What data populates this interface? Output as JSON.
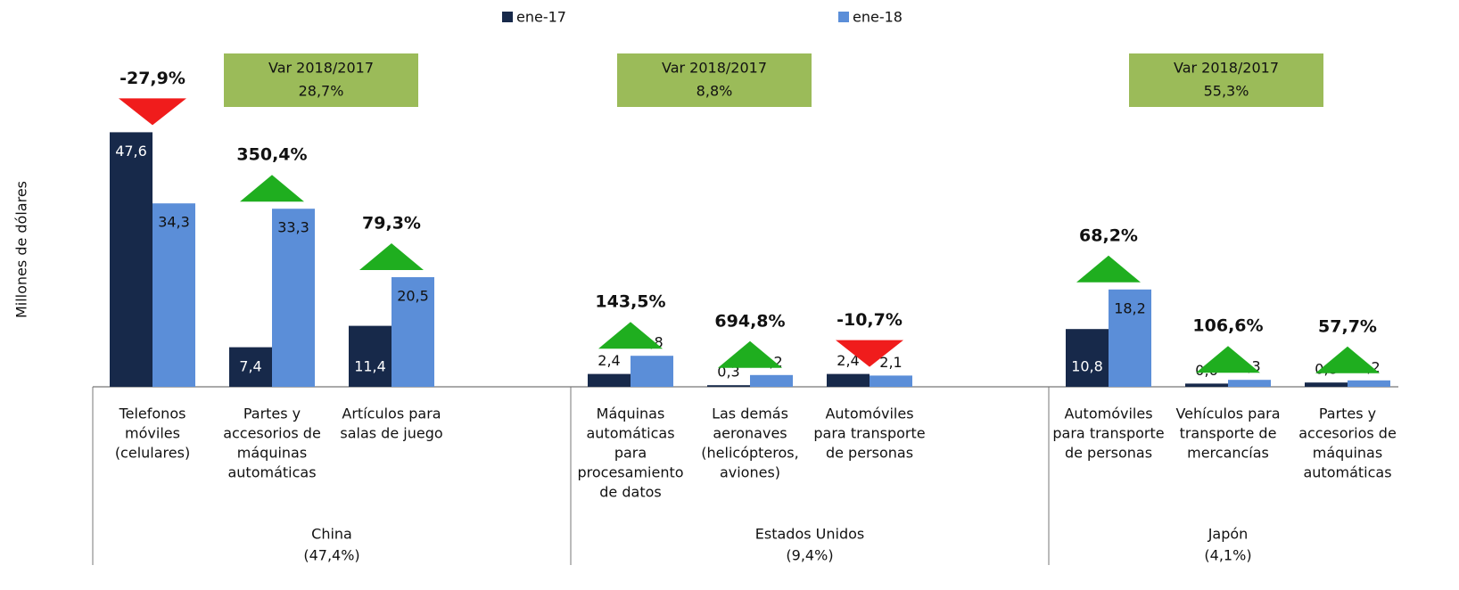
{
  "chart_data": {
    "type": "bar",
    "y_label": "Millones de dólares",
    "ylim": [
      0,
      50
    ],
    "series": [
      {
        "name": "ene-17",
        "color": "#17294a",
        "values": [
          47.6,
          7.4,
          11.4,
          null,
          2.4,
          0.3,
          2.4,
          null,
          10.8,
          0.6,
          0.8
        ],
        "value_labels": [
          "47,6",
          "7,4",
          "11,4",
          null,
          "2,4",
          "0,3",
          "2,4",
          null,
          "10,8",
          "0,6",
          "0,8"
        ]
      },
      {
        "name": "ene-18",
        "color": "#5b8ed8",
        "values": [
          34.3,
          33.3,
          20.5,
          null,
          5.8,
          2.2,
          2.1,
          null,
          18.2,
          1.3,
          1.2
        ],
        "value_labels": [
          "34,3",
          "33,3",
          "20,5",
          null,
          "5,8",
          "2,2",
          "2,1",
          null,
          "18,2",
          "1,3",
          "1,2"
        ]
      }
    ],
    "categories": [
      [
        "Telefonos",
        "móviles",
        "(celulares)"
      ],
      [
        "Partes y",
        "accesorios de",
        "máquinas",
        "automáticas"
      ],
      [
        "Artículos para",
        "salas de juego"
      ],
      null,
      [
        "Máquinas",
        "automáticas",
        "para",
        "procesamiento",
        "de datos"
      ],
      [
        "Las demás",
        "aeronaves",
        "(helicópteros,",
        "aviones)"
      ],
      [
        "Automóviles",
        "para transporte",
        "de personas"
      ],
      null,
      [
        "Automóviles",
        "para transporte",
        "de personas"
      ],
      [
        "Vehículos para",
        "transporte de",
        "mercancías"
      ],
      [
        "Partes y",
        "accesorios de",
        "máquinas",
        "automáticas"
      ]
    ],
    "changes": [
      -27.9,
      350.4,
      79.3,
      null,
      143.5,
      694.8,
      -10.7,
      null,
      68.2,
      106.6,
      57.7
    ],
    "change_labels": [
      "-27,9%",
      "350,4%",
      "79,3%",
      null,
      "143,5%",
      "694,8%",
      "-10,7%",
      null,
      "68,2%",
      "106,6%",
      "57,7%"
    ],
    "up_color": "#1fae1f",
    "down_color": "#f01c1c",
    "groups": [
      {
        "label": "China",
        "share": "(47,4%)",
        "var_title": "Var 2018/2017",
        "var_value": "28,7%",
        "slots": 4
      },
      {
        "label": "Estados Unidos",
        "share": "(9,4%)",
        "var_title": "Var 2018/2017",
        "var_value": "8,8%",
        "slots": 4
      },
      {
        "label": "Japón",
        "share": "(4,1%)",
        "var_title": "Var 2018/2017",
        "var_value": "55,3%",
        "slots": 3
      }
    ],
    "box_color": "#9bbb59"
  }
}
